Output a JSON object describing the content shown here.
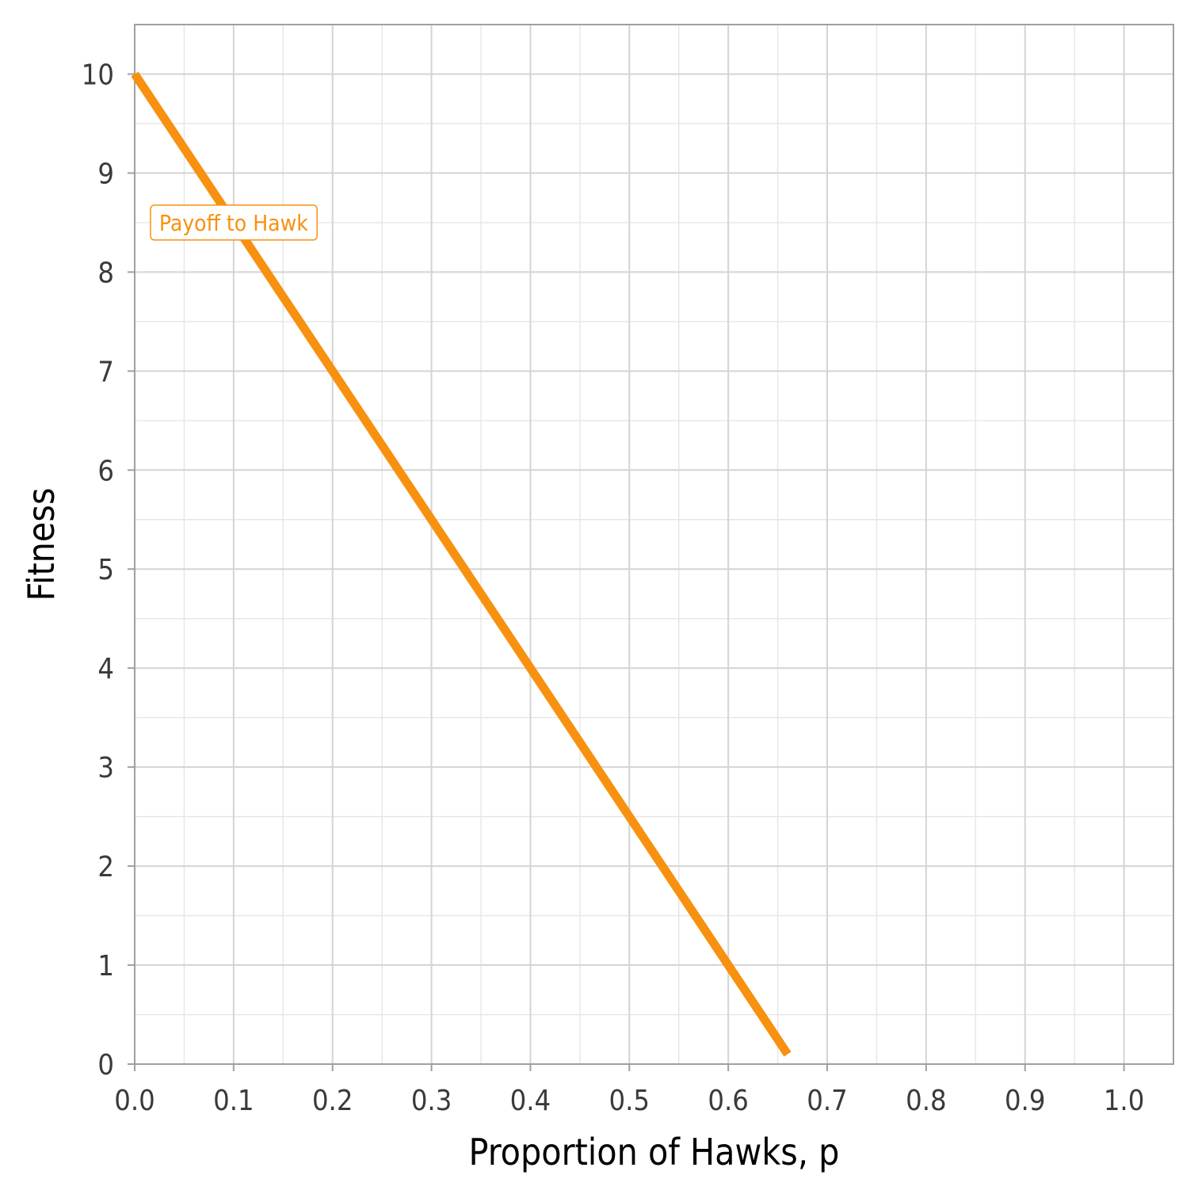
{
  "chart_data": {
    "type": "line",
    "title": "",
    "xlabel": "Proportion of Hawks, p",
    "ylabel": "Fitness",
    "xlim": [
      0,
      1.05
    ],
    "ylim": [
      0,
      10.5
    ],
    "x_ticks": [
      "0.0",
      "0.1",
      "0.2",
      "0.3",
      "0.4",
      "0.5",
      "0.6",
      "0.7",
      "0.8",
      "0.9",
      "1.0"
    ],
    "y_ticks": [
      "0",
      "1",
      "2",
      "3",
      "4",
      "5",
      "6",
      "7",
      "8",
      "9",
      "10"
    ],
    "grid": true,
    "series": [
      {
        "name": "Payoff to Hawk",
        "color": "#F7910F",
        "x": [
          0,
          0.1,
          0.2,
          0.3,
          0.4,
          0.5,
          0.6,
          0.66
        ],
        "y": [
          10,
          8.5,
          7,
          5.5,
          4,
          2.5,
          1,
          0.1
        ]
      }
    ],
    "annotations": [
      {
        "text": "Payoff to Hawk",
        "x": 0.1,
        "y": 8.5,
        "color": "#F7910F"
      }
    ]
  }
}
